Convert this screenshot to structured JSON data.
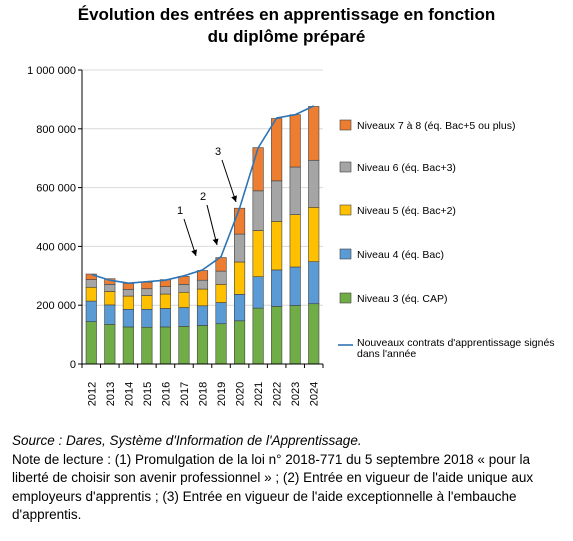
{
  "title_line1": "Évolution des entrées en apprentissage en fonction",
  "title_line2": "du diplôme préparé",
  "source": "Source : Dares, Système d'Information de l'Apprentissage.",
  "note": "Note de lecture : (1) Promulgation de la loi n° 2018-771 du 5 septembre 2018 « pour la liberté de choisir son avenir professionnel » ; (2) Entrée en vigueur de l'aide unique aux employeurs d'apprentis ; (3) Entrée en vigueur de l'aide exceptionnelle à l'embauche d'apprentis.",
  "chart_data": {
    "type": "bar",
    "stacked": true,
    "categories": [
      "2012",
      "2013",
      "2014",
      "2015",
      "2016",
      "2017",
      "2018",
      "2019",
      "2020",
      "2021",
      "2022",
      "2023",
      "2024"
    ],
    "ylim": [
      0,
      1000000
    ],
    "yticks": [
      0,
      200000,
      400000,
      600000,
      800000,
      1000000
    ],
    "ytick_labels": [
      "0",
      "200 000",
      "400 000",
      "600 000",
      "800 000",
      "1 000 000"
    ],
    "xlabel": "",
    "ylabel": "",
    "grid": true,
    "legend_position": "right",
    "series": [
      {
        "name": "Niveau 3 (éq. CAP)",
        "color": "#70AD47",
        "values": [
          144000,
          135000,
          126000,
          125000,
          126000,
          128000,
          131000,
          137000,
          147000,
          190000,
          196000,
          199000,
          205000
        ]
      },
      {
        "name": "Niveau 4 (éq. Bac)",
        "color": "#5B9BD5",
        "values": [
          70000,
          66000,
          60000,
          61000,
          63000,
          64000,
          67000,
          72000,
          90000,
          107000,
          124000,
          131000,
          143000
        ]
      },
      {
        "name": "Niveau 5 (éq. Bac+2)",
        "color": "#FFC000",
        "values": [
          47000,
          46000,
          45000,
          47000,
          49000,
          52000,
          57000,
          62000,
          110000,
          157000,
          165000,
          178000,
          185000
        ]
      },
      {
        "name": "Niveau 6 (éq. Bac+3)",
        "color": "#A5A5A5",
        "values": [
          26000,
          24000,
          23000,
          23000,
          25000,
          27000,
          30000,
          45000,
          95000,
          135000,
          138000,
          162000,
          160000
        ]
      },
      {
        "name": "Niveaux 7 à 8 (éq.  Bac+5 ou plus)",
        "color": "#ED7D31",
        "values": [
          19000,
          19000,
          20000,
          22000,
          24000,
          27000,
          33000,
          46000,
          88000,
          147000,
          212000,
          178000,
          183000
        ]
      }
    ],
    "line_series": {
      "name": "Nouveaux contrats d'apprentissage signés dans l'année",
      "color": "#2E75B6",
      "values": [
        305000,
        285000,
        275000,
        280000,
        285000,
        300000,
        320000,
        365000,
        530000,
        735000,
        837000,
        848000,
        878000
      ]
    },
    "annotations": [
      {
        "label": "1",
        "year": "2018"
      },
      {
        "label": "2",
        "year": "2019"
      },
      {
        "label": "3",
        "year": "2020"
      }
    ]
  }
}
